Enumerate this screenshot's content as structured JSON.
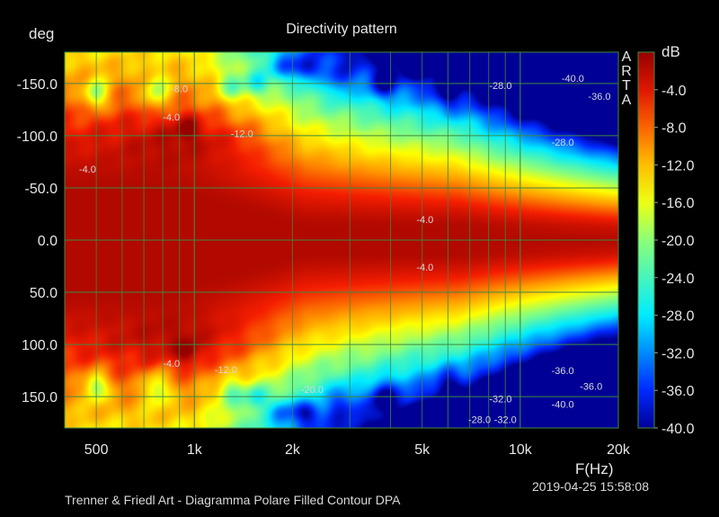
{
  "chart_data": {
    "type": "heatmap",
    "title": "Directivity pattern",
    "xlabel": "F(Hz)",
    "ylabel": "deg",
    "colorbar_label": "dB",
    "x_scale": "log",
    "xlim": [
      400,
      20000
    ],
    "ylim": [
      -180,
      180
    ],
    "y_inverted": true,
    "x_ticks": [
      500,
      1000,
      2000,
      5000,
      10000,
      20000
    ],
    "x_tick_labels": [
      "500",
      "1k",
      "2k",
      "5k",
      "10k",
      "20k"
    ],
    "y_ticks": [
      -150,
      -100,
      -50,
      0,
      50,
      100,
      150
    ],
    "y_tick_labels": [
      "-150.0",
      "-100.0",
      "-50.0",
      "0.0",
      "50.0",
      "100.0",
      "150.0"
    ],
    "colorbar_ticks": [
      -4,
      -8,
      -12,
      -16,
      -20,
      -24,
      -28,
      -32,
      -36,
      -40
    ],
    "colorbar_tick_labels": [
      "-4.0",
      "-8.0",
      "-12.0",
      "-16.0",
      "-20.0",
      "-24.0",
      "-28.0",
      "-32.0",
      "-36.0",
      "-40.0"
    ],
    "color_range": [
      -40,
      0
    ],
    "grid": true,
    "contour_labels": [
      {
        "x": 900,
        "y": -145,
        "text": "-8.0"
      },
      {
        "x": 850,
        "y": -118,
        "text": "-4.0"
      },
      {
        "x": 470,
        "y": -68,
        "text": "-4.0"
      },
      {
        "x": 1400,
        "y": -102,
        "text": "-12.0"
      },
      {
        "x": 5100,
        "y": -20,
        "text": "-4.0"
      },
      {
        "x": 5100,
        "y": 26,
        "text": "-4.0"
      },
      {
        "x": 8700,
        "y": -148,
        "text": "-28.0"
      },
      {
        "x": 14500,
        "y": -155,
        "text": "-40.0"
      },
      {
        "x": 17500,
        "y": -138,
        "text": "-36.0"
      },
      {
        "x": 13500,
        "y": -94,
        "text": "-28.0"
      },
      {
        "x": 850,
        "y": 118,
        "text": "-4.0"
      },
      {
        "x": 1250,
        "y": 124,
        "text": "-12.0"
      },
      {
        "x": 2300,
        "y": 143,
        "text": "-20.0"
      },
      {
        "x": 13500,
        "y": 125,
        "text": "-36.0"
      },
      {
        "x": 16500,
        "y": 140,
        "text": "-36.0"
      },
      {
        "x": 13500,
        "y": 157,
        "text": "-40.0"
      },
      {
        "x": 8700,
        "y": 152,
        "text": "-32.0"
      },
      {
        "x": 7500,
        "y": 172,
        "text": "-28.0"
      },
      {
        "x": 9000,
        "y": 172,
        "text": "-32.0"
      }
    ],
    "vendor_mark": "ARTA"
  },
  "footer": {
    "left": "Trenner & Friedl Art - Diagramma Polare Filled Contour     DPA",
    "timestamp": "2019-04-25  15:58:08"
  }
}
